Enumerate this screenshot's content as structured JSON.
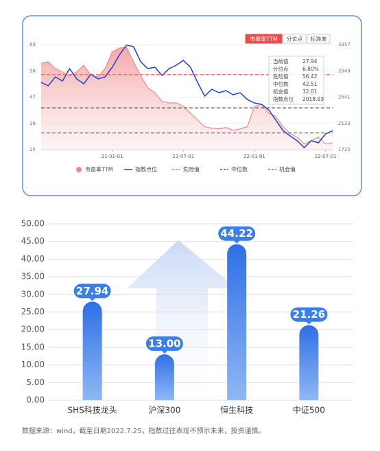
{
  "chart_data": [
    {
      "type": "line",
      "tabs": [
        "市盈率TTM",
        "分位点",
        "标准差"
      ],
      "categories": [
        null,
        null,
        null,
        null,
        null,
        null,
        null,
        null,
        null,
        null,
        "21-01-01",
        null,
        null,
        null,
        null,
        null,
        null,
        null,
        null,
        null,
        "21-07-01",
        null,
        null,
        null,
        null,
        null,
        null,
        null,
        null,
        null,
        "22-01-01",
        null,
        null,
        null,
        null,
        null,
        null,
        null,
        null,
        null,
        "22-07-01",
        null
      ],
      "series": [
        {
          "name": "市盈率TTM",
          "color": "#f08a8a",
          "area": true,
          "values": [
            61.2,
            61.8,
            59,
            57.5,
            56,
            57.5,
            60.4,
            56,
            55.5,
            59,
            66,
            67.5,
            68,
            61.8,
            56,
            50.9,
            48.9,
            45.2,
            44.6,
            44.6,
            43.2,
            40.3,
            37.4,
            34.6,
            34,
            33.7,
            34.3,
            33.1,
            33.7,
            34.6,
            43.2,
            44,
            40.3,
            38.9,
            34.6,
            31.7,
            30.3,
            27.4,
            28.8,
            30.3,
            27.4,
            27.94
          ]
        },
        {
          "name": "指数点位",
          "color": "#1f3fd1",
          "axis": "y2",
          "values": [
            2770,
            2717,
            2856,
            2792,
            2984,
            2824,
            2749,
            2898,
            2824,
            2856,
            3005,
            3197,
            3350,
            3325,
            3090,
            2984,
            3005,
            2877,
            2984,
            3037,
            3112,
            3005,
            2770,
            2557,
            2664,
            2610,
            2642,
            2578,
            2610,
            2504,
            2450,
            2429,
            2344,
            2184,
            2024,
            1939,
            1864,
            1757,
            1864,
            1832,
            1970,
            2018.93
          ]
        }
      ],
      "reference_lines": [
        {
          "name": "危险值",
          "value": 56.42,
          "color": "#e06666"
        },
        {
          "name": "中位数",
          "value": 42.51,
          "color": "#555555"
        },
        {
          "name": "机会值",
          "value": 32.01,
          "color": "#7b5fd6"
        }
      ],
      "stats": [
        {
          "label": "当前值",
          "value": 27.94
        },
        {
          "label": "分位点",
          "value": {
            "value": 6.8,
            "label": "6.80%"
          }
        },
        {
          "label": "危险值",
          "value": 56.42
        },
        {
          "label": "中位数",
          "value": 42.51
        },
        {
          "label": "机会值",
          "value": 32.01
        },
        {
          "label": "指数点位",
          "value": 2018.93
        }
      ],
      "ylim": [
        25,
        69
      ],
      "yticks": [
        25,
        36,
        47,
        58,
        69
      ],
      "y2lim": [
        1725,
        3357
      ],
      "y2ticks": [
        1725,
        2133,
        2541,
        2949,
        3357
      ],
      "grid": true
    },
    {
      "type": "bar",
      "categories": [
        "SHS科技龙头",
        "沪深300",
        "恒生科技",
        "中证500"
      ],
      "values": [
        27.94,
        13,
        44.22,
        21.26
      ],
      "value_labels": [
        "27.94",
        "13.00",
        "44.22",
        "21.26"
      ],
      "color": "#3a7ee8",
      "ylim": [
        0,
        50
      ],
      "yticks": [
        {
          "value": 0,
          "label": "0.00"
        },
        {
          "value": 5,
          "label": "5.00"
        },
        {
          "value": 10,
          "label": "10.00"
        },
        {
          "value": 15,
          "label": "15.00"
        },
        {
          "value": 20,
          "label": "20.00"
        },
        {
          "value": 25,
          "label": "25.00"
        },
        {
          "value": 30,
          "label": "30.00"
        },
        {
          "value": 35,
          "label": "35.00"
        },
        {
          "value": 40,
          "label": "40.00"
        },
        {
          "value": 45,
          "label": "45.00"
        },
        {
          "value": 50,
          "label": "50.00"
        }
      ],
      "grid": true
    }
  ],
  "footer": "数据来源：wind，截至日期2022.7.25，指数过往表现不预示未来，投资谨慎。"
}
